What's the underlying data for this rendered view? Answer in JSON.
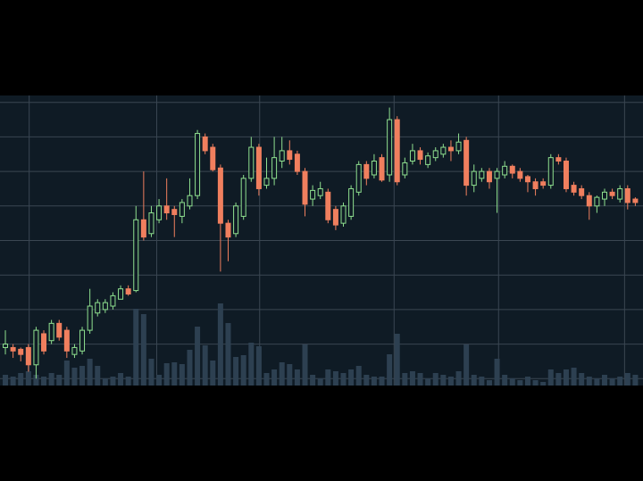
{
  "chart_data": {
    "type": "candlestick",
    "open": [
      19,
      19,
      18.5,
      19,
      14,
      23,
      21,
      26,
      24,
      17,
      18,
      24,
      29,
      30,
      31,
      33,
      36,
      35.5,
      56,
      52,
      56,
      60,
      59,
      57,
      60,
      63,
      80,
      77,
      71,
      55,
      52,
      57,
      68,
      77,
      66,
      68,
      73,
      76,
      75,
      70,
      62,
      63,
      64,
      59,
      55,
      57,
      64,
      72,
      69,
      74,
      69,
      85,
      69,
      73,
      76,
      72,
      74,
      75,
      77,
      76,
      79,
      66,
      68,
      70,
      68,
      69,
      71.5,
      70,
      68.5,
      67,
      67,
      66,
      74,
      73,
      66,
      65,
      63,
      60,
      62,
      64,
      62,
      65,
      62
    ],
    "high": [
      24,
      20,
      19,
      20,
      25,
      24,
      27,
      27,
      25,
      20,
      25,
      36,
      33,
      33,
      35,
      37,
      37,
      60,
      70,
      60,
      62,
      68,
      60,
      62,
      68,
      82,
      81,
      78,
      72,
      56,
      61,
      69,
      80,
      78,
      74,
      80,
      80,
      79,
      76,
      71,
      66,
      67,
      65,
      60,
      61,
      66,
      73,
      73,
      75,
      75,
      88.5,
      86,
      74,
      78,
      77,
      75.5,
      77,
      78,
      79,
      81,
      80,
      72,
      71,
      71,
      71,
      73,
      72,
      71,
      69,
      68,
      68,
      75,
      75,
      74,
      67,
      66,
      64,
      63,
      65,
      65,
      66,
      66,
      62.5
    ],
    "low": [
      17,
      16,
      15,
      12,
      10,
      17,
      20,
      21,
      16,
      16,
      17,
      23,
      28,
      29,
      30,
      33,
      34,
      35,
      50,
      51,
      55,
      56,
      51,
      55,
      59,
      62,
      75,
      70,
      41,
      44,
      51,
      56,
      67,
      63,
      65,
      66,
      71,
      72,
      69,
      57,
      60,
      62,
      55,
      53,
      54,
      56,
      63,
      66,
      68,
      67,
      67,
      66,
      68,
      72,
      72,
      71,
      73,
      74,
      73,
      75,
      63,
      64,
      67,
      65,
      58,
      68,
      68,
      67,
      64,
      63,
      65,
      65,
      72,
      64,
      63,
      62,
      56,
      58,
      60,
      62,
      61,
      59,
      60
    ],
    "close": [
      20,
      18,
      17,
      14,
      24,
      18,
      26,
      22,
      18,
      19,
      24,
      31,
      32,
      32,
      34,
      36,
      34.5,
      56,
      51,
      58,
      60,
      58,
      57.5,
      61,
      63,
      81,
      76,
      70.5,
      55,
      51,
      60,
      68,
      77,
      65,
      68,
      74,
      76,
      73.5,
      70,
      60.5,
      64.5,
      65,
      56,
      54.5,
      60,
      65,
      72,
      68,
      73,
      67.5,
      85,
      67,
      72.5,
      76,
      73.5,
      74.5,
      76,
      77,
      76,
      78.5,
      66,
      70,
      70,
      67,
      70,
      71.5,
      69.5,
      68,
      67,
      65,
      66,
      74,
      73,
      65,
      64,
      63,
      60,
      62.5,
      64,
      63,
      65,
      61,
      61
    ],
    "volume": [
      12,
      10,
      14,
      16,
      12,
      10,
      14,
      12,
      28,
      20,
      22,
      30,
      22,
      8,
      10,
      14,
      10,
      86,
      80,
      30,
      12,
      25,
      26,
      24,
      40,
      66,
      45,
      28,
      92,
      70,
      32,
      34,
      48,
      44,
      14,
      18,
      26,
      24,
      18,
      46,
      12,
      8,
      18,
      16,
      14,
      18,
      22,
      12,
      10,
      10,
      35,
      58,
      14,
      16,
      14,
      8,
      14,
      12,
      10,
      16,
      46,
      12,
      10,
      6,
      30,
      12,
      8,
      6,
      10,
      6,
      4,
      18,
      14,
      18,
      20,
      14,
      10,
      8,
      12,
      8,
      10,
      14,
      12
    ],
    "ylim": [
      8,
      92
    ],
    "yticks": [
      10,
      20,
      30,
      40,
      50,
      60,
      70,
      80,
      90
    ],
    "y2lim": [
      0,
      100
    ],
    "xlim": [
      -0.7,
      83.0
    ],
    "xticks": [
      3.1,
      19.7,
      33.1,
      50.6,
      64.2,
      80.6
    ],
    "grid": true,
    "up_color": "#8fe08f",
    "down_color": "#f07f5e",
    "volume_color": "#2d4051"
  }
}
